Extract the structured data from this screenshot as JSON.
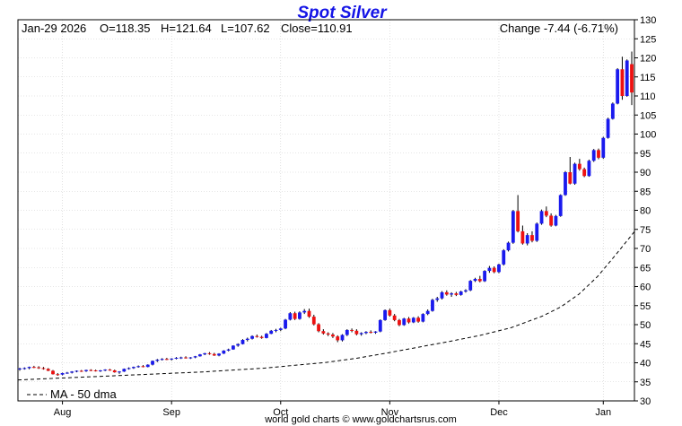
{
  "chart_data": {
    "type": "candlestick",
    "title": "Spot Silver",
    "info": {
      "date": "Jan-29  2026",
      "open": "O=118.35",
      "high": "H=121.64",
      "low": "L=107.62",
      "close": "Close=110.91",
      "change": "Change -7.44 (-6.71%)"
    },
    "x_ticks": [
      "Aug",
      "Sep",
      "Oct",
      "Nov",
      "Dec",
      "Jan"
    ],
    "y_ticks": [
      30,
      35,
      40,
      45,
      50,
      55,
      60,
      65,
      70,
      75,
      80,
      85,
      90,
      95,
      100,
      105,
      110,
      115,
      120,
      125,
      130
    ],
    "ylim": [
      30,
      130
    ],
    "grid": true,
    "legend": [
      {
        "label": "MA - 50 dma",
        "style": "dashed",
        "position": "bottom-left"
      }
    ],
    "footer": "world gold charts © www.goldchartsrus.com",
    "colors": {
      "up": "#1a1aee",
      "down": "#ee1111",
      "grid": "#cccccc",
      "title": "#1515e6"
    },
    "candles": [
      [
        38.3,
        38.7,
        37.9,
        38.5
      ],
      [
        38.5,
        38.8,
        38.2,
        38.6
      ],
      [
        38.6,
        39.0,
        38.3,
        38.9
      ],
      [
        38.9,
        39.2,
        38.6,
        38.8
      ],
      [
        38.8,
        39.1,
        38.4,
        38.6
      ],
      [
        38.6,
        38.9,
        38.2,
        38.4
      ],
      [
        38.4,
        38.6,
        37.8,
        37.9
      ],
      [
        37.9,
        38.1,
        36.9,
        37.0
      ],
      [
        37.0,
        37.3,
        36.6,
        36.9
      ],
      [
        36.9,
        37.4,
        36.7,
        37.3
      ],
      [
        37.3,
        37.6,
        37.1,
        37.4
      ],
      [
        37.4,
        37.8,
        37.2,
        37.7
      ],
      [
        37.7,
        38.0,
        37.5,
        37.9
      ],
      [
        37.9,
        38.1,
        37.6,
        37.8
      ],
      [
        37.8,
        38.2,
        37.6,
        38.1
      ],
      [
        38.1,
        38.3,
        37.8,
        38.0
      ],
      [
        38.0,
        38.2,
        37.7,
        37.8
      ],
      [
        37.8,
        38.1,
        37.6,
        38.0
      ],
      [
        38.0,
        38.3,
        37.8,
        38.2
      ],
      [
        38.2,
        38.4,
        37.9,
        38.0
      ],
      [
        38.0,
        38.2,
        37.4,
        37.5
      ],
      [
        37.5,
        37.8,
        37.1,
        37.7
      ],
      [
        37.7,
        38.5,
        37.6,
        38.4
      ],
      [
        38.4,
        38.8,
        38.2,
        38.6
      ],
      [
        38.6,
        39.0,
        38.4,
        38.9
      ],
      [
        38.9,
        39.3,
        38.7,
        39.1
      ],
      [
        39.1,
        39.4,
        38.8,
        38.9
      ],
      [
        38.9,
        39.6,
        38.8,
        39.5
      ],
      [
        39.5,
        40.6,
        39.3,
        40.5
      ],
      [
        40.5,
        41.0,
        40.2,
        40.8
      ],
      [
        40.8,
        41.2,
        40.6,
        41.0
      ],
      [
        41.0,
        41.3,
        40.7,
        40.9
      ],
      [
        40.9,
        41.2,
        40.6,
        41.1
      ],
      [
        41.1,
        41.5,
        40.9,
        41.3
      ],
      [
        41.3,
        41.6,
        41.0,
        41.4
      ],
      [
        41.4,
        41.7,
        41.1,
        41.2
      ],
      [
        41.2,
        41.5,
        41.0,
        41.4
      ],
      [
        41.4,
        41.8,
        41.2,
        41.7
      ],
      [
        41.7,
        42.3,
        41.6,
        42.2
      ],
      [
        42.2,
        42.6,
        42.0,
        42.5
      ],
      [
        42.5,
        42.8,
        42.1,
        42.3
      ],
      [
        42.3,
        42.6,
        41.8,
        41.9
      ],
      [
        41.9,
        42.5,
        41.7,
        42.4
      ],
      [
        42.4,
        43.3,
        42.3,
        43.2
      ],
      [
        43.2,
        43.7,
        43.0,
        43.5
      ],
      [
        43.5,
        44.6,
        43.4,
        44.5
      ],
      [
        44.5,
        45.1,
        44.2,
        44.9
      ],
      [
        44.9,
        46.2,
        44.8,
        46.0
      ],
      [
        46.0,
        46.6,
        45.6,
        46.3
      ],
      [
        46.3,
        47.2,
        46.1,
        47.0
      ],
      [
        47.0,
        47.4,
        46.6,
        46.8
      ],
      [
        46.8,
        47.1,
        46.3,
        46.5
      ],
      [
        46.5,
        47.8,
        46.4,
        47.6
      ],
      [
        47.6,
        48.6,
        47.5,
        48.4
      ],
      [
        48.4,
        48.9,
        48.0,
        48.6
      ],
      [
        48.6,
        49.2,
        48.3,
        49.0
      ],
      [
        49.0,
        51.5,
        48.8,
        51.3
      ],
      [
        51.3,
        53.3,
        51.1,
        53.0
      ],
      [
        53.0,
        53.4,
        51.2,
        51.5
      ],
      [
        51.5,
        53.5,
        51.3,
        53.2
      ],
      [
        53.2,
        54.1,
        52.8,
        53.6
      ],
      [
        53.6,
        54.2,
        51.8,
        52.1
      ],
      [
        52.1,
        52.6,
        49.8,
        50.1
      ],
      [
        50.1,
        50.4,
        48.0,
        48.3
      ],
      [
        48.3,
        48.8,
        47.4,
        47.7
      ],
      [
        47.7,
        48.0,
        47.0,
        47.4
      ],
      [
        47.4,
        47.8,
        46.5,
        46.9
      ],
      [
        46.9,
        47.2,
        45.4,
        45.9
      ],
      [
        45.9,
        47.5,
        45.6,
        47.3
      ],
      [
        47.3,
        48.8,
        47.0,
        48.6
      ],
      [
        48.6,
        49.0,
        48.0,
        48.4
      ],
      [
        48.4,
        48.8,
        47.2,
        47.5
      ],
      [
        47.5,
        48.0,
        47.1,
        47.8
      ],
      [
        47.8,
        48.3,
        47.5,
        48.1
      ],
      [
        48.1,
        48.5,
        47.7,
        47.9
      ],
      [
        47.9,
        48.3,
        47.6,
        48.2
      ],
      [
        48.2,
        51.4,
        48.0,
        51.2
      ],
      [
        51.2,
        54.0,
        51.0,
        53.8
      ],
      [
        53.8,
        54.2,
        52.1,
        52.4
      ],
      [
        52.4,
        52.8,
        50.9,
        51.2
      ],
      [
        51.2,
        51.5,
        49.6,
        49.9
      ],
      [
        49.9,
        51.8,
        49.7,
        51.6
      ],
      [
        51.6,
        52.0,
        50.3,
        50.6
      ],
      [
        50.6,
        52.0,
        50.4,
        51.8
      ],
      [
        51.8,
        52.2,
        50.5,
        50.8
      ],
      [
        50.8,
        53.0,
        50.6,
        52.8
      ],
      [
        52.8,
        54.0,
        52.5,
        53.6
      ],
      [
        53.6,
        56.8,
        53.4,
        56.5
      ],
      [
        56.5,
        57.3,
        56.0,
        56.9
      ],
      [
        56.9,
        58.8,
        56.6,
        58.5
      ],
      [
        58.5,
        59.0,
        57.6,
        57.9
      ],
      [
        57.9,
        58.5,
        57.3,
        58.2
      ],
      [
        58.2,
        58.6,
        57.5,
        57.8
      ],
      [
        57.8,
        58.9,
        57.6,
        58.7
      ],
      [
        58.7,
        59.3,
        58.4,
        59.0
      ],
      [
        59.0,
        61.7,
        58.8,
        61.5
      ],
      [
        61.5,
        62.3,
        61.2,
        62.0
      ],
      [
        62.0,
        62.8,
        61.1,
        61.4
      ],
      [
        61.4,
        64.3,
        61.2,
        64.1
      ],
      [
        64.1,
        65.4,
        63.6,
        64.9
      ],
      [
        64.9,
        65.3,
        63.5,
        63.8
      ],
      [
        63.8,
        66.0,
        63.5,
        65.8
      ],
      [
        65.8,
        69.8,
        65.5,
        69.5
      ],
      [
        69.5,
        71.8,
        69.2,
        71.5
      ],
      [
        71.5,
        80.1,
        71.2,
        79.8
      ],
      [
        79.8,
        84.0,
        74.2,
        74.5
      ],
      [
        74.5,
        76.0,
        71.0,
        71.3
      ],
      [
        71.3,
        74.0,
        70.8,
        73.5
      ],
      [
        73.5,
        74.5,
        71.6,
        72.0
      ],
      [
        72.0,
        76.8,
        71.7,
        76.5
      ],
      [
        76.5,
        80.2,
        76.2,
        79.8
      ],
      [
        79.8,
        81.0,
        78.2,
        78.6
      ],
      [
        78.6,
        79.2,
        75.7,
        76.0
      ],
      [
        76.0,
        78.8,
        75.8,
        78.5
      ],
      [
        78.5,
        84.2,
        78.3,
        84.0
      ],
      [
        84.0,
        90.3,
        83.8,
        90.0
      ],
      [
        90.0,
        94.0,
        86.8,
        87.0
      ],
      [
        87.0,
        92.5,
        86.7,
        92.2
      ],
      [
        92.2,
        93.5,
        90.4,
        90.8
      ],
      [
        90.8,
        91.2,
        88.7,
        89.0
      ],
      [
        89.0,
        93.3,
        88.8,
        93.0
      ],
      [
        93.0,
        96.1,
        92.7,
        95.8
      ],
      [
        95.8,
        96.2,
        93.4,
        93.8
      ],
      [
        93.8,
        99.3,
        93.5,
        99.0
      ],
      [
        99.0,
        104.3,
        98.8,
        104.0
      ],
      [
        104.0,
        108.3,
        103.8,
        108.0
      ],
      [
        108.0,
        117.3,
        107.8,
        117.0
      ],
      [
        117.0,
        120.3,
        109.0,
        110.0
      ],
      [
        110.0,
        119.6,
        109.8,
        119.3
      ],
      [
        118.35,
        121.64,
        107.62,
        110.91
      ]
    ],
    "ma50": [
      [
        0,
        35.5
      ],
      [
        0.1,
        36.2
      ],
      [
        0.2,
        36.9
      ],
      [
        0.3,
        37.6
      ],
      [
        0.4,
        38.6
      ],
      [
        0.5,
        40.1
      ],
      [
        0.55,
        41.2
      ],
      [
        0.6,
        42.6
      ],
      [
        0.65,
        44.1
      ],
      [
        0.7,
        45.6
      ],
      [
        0.75,
        47.2
      ],
      [
        0.8,
        49.2
      ],
      [
        0.85,
        52.2
      ],
      [
        0.88,
        54.6
      ],
      [
        0.91,
        58.0
      ],
      [
        0.94,
        62.6
      ],
      [
        0.97,
        68.4
      ],
      [
        1.0,
        74.4
      ]
    ]
  }
}
